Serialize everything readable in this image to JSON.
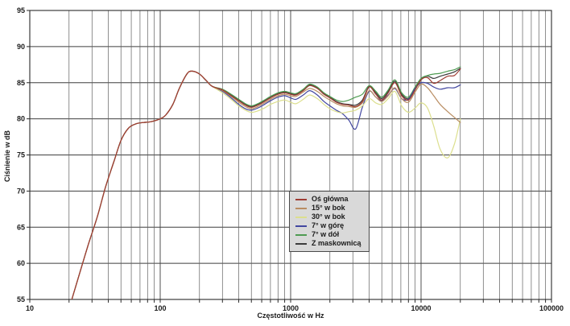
{
  "figure": {
    "background": "#ffffff",
    "grid_color_major": "#3f3f3f",
    "grid_color_minor": "#5f5f5f",
    "axis_color": "#2a2a2a",
    "legend_bg": "#d9d9d9"
  },
  "chart_data": {
    "type": "line",
    "title": "",
    "xlabel": "Częstotliwość w Hz",
    "ylabel": "Ciśnienie w dB",
    "x_scale": "log",
    "xlim": [
      10,
      100000
    ],
    "ylim": [
      55,
      95
    ],
    "x_tick_labels": [
      "10",
      "100",
      "1000",
      "10000",
      "100000"
    ],
    "x_ticks": [
      10,
      100,
      1000,
      10000,
      100000
    ],
    "y_ticks": [
      55,
      60,
      65,
      70,
      75,
      80,
      85,
      90,
      95
    ],
    "grid": true,
    "legend_position": "inside-bottom-center",
    "x_low": [
      21,
      24,
      28,
      33,
      38,
      44,
      50,
      57,
      65,
      75,
      85,
      100,
      110,
      125,
      140,
      160,
      175,
      200,
      225,
      250
    ],
    "y_low_common": [
      55,
      58.5,
      62.5,
      66.5,
      70.5,
      74,
      77,
      78.7,
      79.3,
      79.5,
      79.6,
      80,
      80.5,
      82,
      84.2,
      86.2,
      86.6,
      86.2,
      85.3,
      84.5
    ],
    "x_high": [
      300,
      350,
      400,
      450,
      500,
      560,
      630,
      700,
      800,
      900,
      1000,
      1100,
      1250,
      1400,
      1600,
      1800,
      2000,
      2240,
      2500,
      2800,
      3150,
      3550,
      4000,
      4500,
      5000,
      5600,
      6300,
      7100,
      8000,
      9000,
      10000,
      11200,
      12500,
      14000,
      16000,
      18000,
      20000
    ],
    "series": [
      {
        "name": "Oś główna",
        "color": "#9e3b32",
        "values": [
          84.0,
          83.2,
          82.5,
          81.9,
          81.6,
          81.9,
          82.4,
          82.9,
          83.4,
          83.6,
          83.4,
          83.3,
          83.9,
          84.6,
          84.2,
          83.4,
          82.9,
          82.3,
          82.0,
          81.9,
          81.7,
          82.4,
          84.4,
          83.4,
          82.6,
          83.6,
          85.0,
          83.2,
          82.6,
          84.0,
          85.4,
          85.7,
          84.9,
          85.3,
          85.9,
          86.0,
          86.9
        ]
      },
      {
        "name": "15° w bok",
        "color": "#b98d62",
        "values": [
          83.9,
          83.1,
          82.3,
          81.7,
          81.4,
          81.7,
          82.2,
          82.7,
          83.2,
          83.4,
          83.2,
          83.1,
          83.7,
          84.2,
          83.8,
          83.1,
          82.6,
          82.1,
          81.8,
          81.7,
          81.6,
          82.2,
          83.9,
          83.0,
          82.4,
          83.2,
          84.3,
          82.8,
          82.3,
          83.7,
          84.8,
          84.3,
          83.2,
          82.0,
          81.0,
          80.2,
          79.5
        ]
      },
      {
        "name": "30° w bok",
        "color": "#dcdf8e",
        "values": [
          83.6,
          82.7,
          81.8,
          81.2,
          80.9,
          81.1,
          81.5,
          82.0,
          82.4,
          82.6,
          82.3,
          82.1,
          82.7,
          83.3,
          82.8,
          82.0,
          81.4,
          81.0,
          80.8,
          81.0,
          81.2,
          81.8,
          82.8,
          82.2,
          82.0,
          82.8,
          83.8,
          81.8,
          80.9,
          81.5,
          82.2,
          81.5,
          79.0,
          75.8,
          74.6,
          76.5,
          80.0
        ]
      },
      {
        "name": "7° w górę",
        "color": "#4247a0",
        "values": [
          83.8,
          82.9,
          82.0,
          81.4,
          81.2,
          81.5,
          82.0,
          82.5,
          83.0,
          83.2,
          82.9,
          82.7,
          83.3,
          83.9,
          83.3,
          82.4,
          81.8,
          81.2,
          80.7,
          79.8,
          78.6,
          81.6,
          83.8,
          83.0,
          82.5,
          83.3,
          84.2,
          82.8,
          82.7,
          84.2,
          85.0,
          84.9,
          84.4,
          84.1,
          84.3,
          84.3,
          84.7
        ]
      },
      {
        "name": "7° w dół",
        "color": "#4f9b52",
        "values": [
          84.1,
          83.4,
          82.7,
          82.1,
          81.8,
          82.1,
          82.6,
          83.1,
          83.6,
          83.8,
          83.6,
          83.5,
          84.1,
          84.8,
          84.4,
          83.6,
          83.1,
          82.6,
          82.4,
          82.6,
          83.0,
          83.4,
          84.6,
          83.8,
          83.0,
          84.0,
          85.4,
          83.6,
          83.0,
          84.4,
          85.6,
          86.0,
          86.2,
          86.3,
          86.6,
          86.8,
          87.2
        ]
      },
      {
        "name": "Z maskownicą",
        "color": "#3c3c3c",
        "values": [
          84.0,
          83.3,
          82.6,
          82.0,
          81.7,
          82.0,
          82.5,
          83.0,
          83.5,
          83.7,
          83.5,
          83.4,
          84.0,
          84.7,
          84.3,
          83.5,
          83.0,
          82.4,
          82.1,
          82.0,
          81.9,
          82.6,
          84.5,
          83.6,
          82.8,
          83.8,
          85.2,
          83.4,
          82.8,
          84.2,
          85.5,
          85.9,
          85.6,
          85.9,
          86.2,
          86.5,
          87.0
        ]
      }
    ]
  }
}
